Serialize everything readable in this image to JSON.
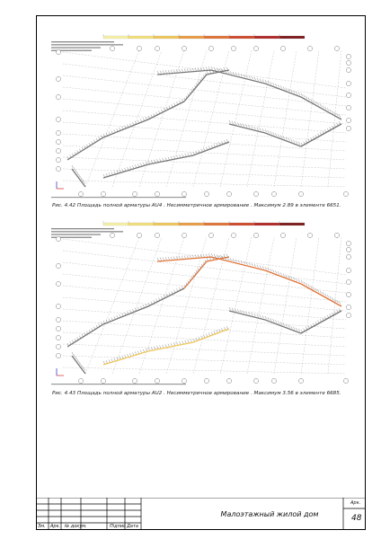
{
  "figures": [
    {
      "caption": "Рис. 4.42 Площадь полной арматуры AU4 . Несимметричное армирование . Максимум 2.89 в элементе 6651.",
      "scale_colors": [
        "#f7f2a6",
        "#f3e07a",
        "#efc75a",
        "#ea9d45",
        "#e07336",
        "#cf4a2d",
        "#b12a26",
        "#7e1c1c"
      ]
    },
    {
      "caption": "Рис. 4.43 Площадь полной арматуры AU2 . Несимметричное армирование . Максимум 3.56 в элементе 6685.",
      "scale_colors": [
        "#f7f2a6",
        "#f3e07a",
        "#efc75a",
        "#ea9d45",
        "#e07336",
        "#cf4a2d",
        "#b12a26",
        "#7e1c1c"
      ]
    }
  ],
  "title_block": {
    "cells": [
      "Зм.",
      "Арк.",
      "№ докум.",
      "Підпис",
      "Дата"
    ],
    "title": "Малоэтажный жилой дом",
    "sheet_label": "Арк.",
    "sheet_number": "48"
  }
}
